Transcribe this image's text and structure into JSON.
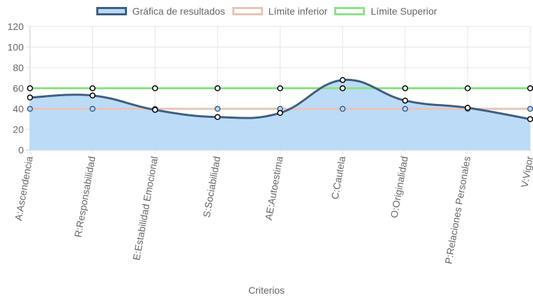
{
  "chart_data": {
    "type": "line",
    "title": "",
    "xlabel": "Criterios",
    "ylabel": "",
    "ylim": [
      0,
      120
    ],
    "yticks": [
      0,
      20,
      40,
      60,
      80,
      100,
      120
    ],
    "grid": true,
    "legend_position": "top",
    "categories": [
      "A:Ascendencia",
      "R:Responsabilidad",
      "E:Estabilidad Emocional",
      "S:Sociabilidad",
      "AE:Autoestima",
      "C:Cautela",
      "O:Originalidad",
      "P:Relaciones Personales",
      "V:Vigor"
    ],
    "series": [
      {
        "name": "Gráfica de resultados",
        "values": [
          51,
          53,
          39,
          32,
          36,
          68,
          48,
          41,
          30
        ],
        "stroke": "#3e5f80",
        "fill": "#b8d9f7",
        "filled": true
      },
      {
        "name": "Límite inferior",
        "values": [
          40,
          40,
          40,
          40,
          40,
          40,
          40,
          40,
          40
        ],
        "stroke": "#e8c4b8",
        "fill": "#ffffff",
        "filled": false
      },
      {
        "name": "Límite Superior",
        "values": [
          60,
          60,
          60,
          60,
          60,
          60,
          60,
          60,
          60
        ],
        "stroke": "#8ee08a",
        "fill": "#ffffff",
        "filled": false
      }
    ]
  }
}
